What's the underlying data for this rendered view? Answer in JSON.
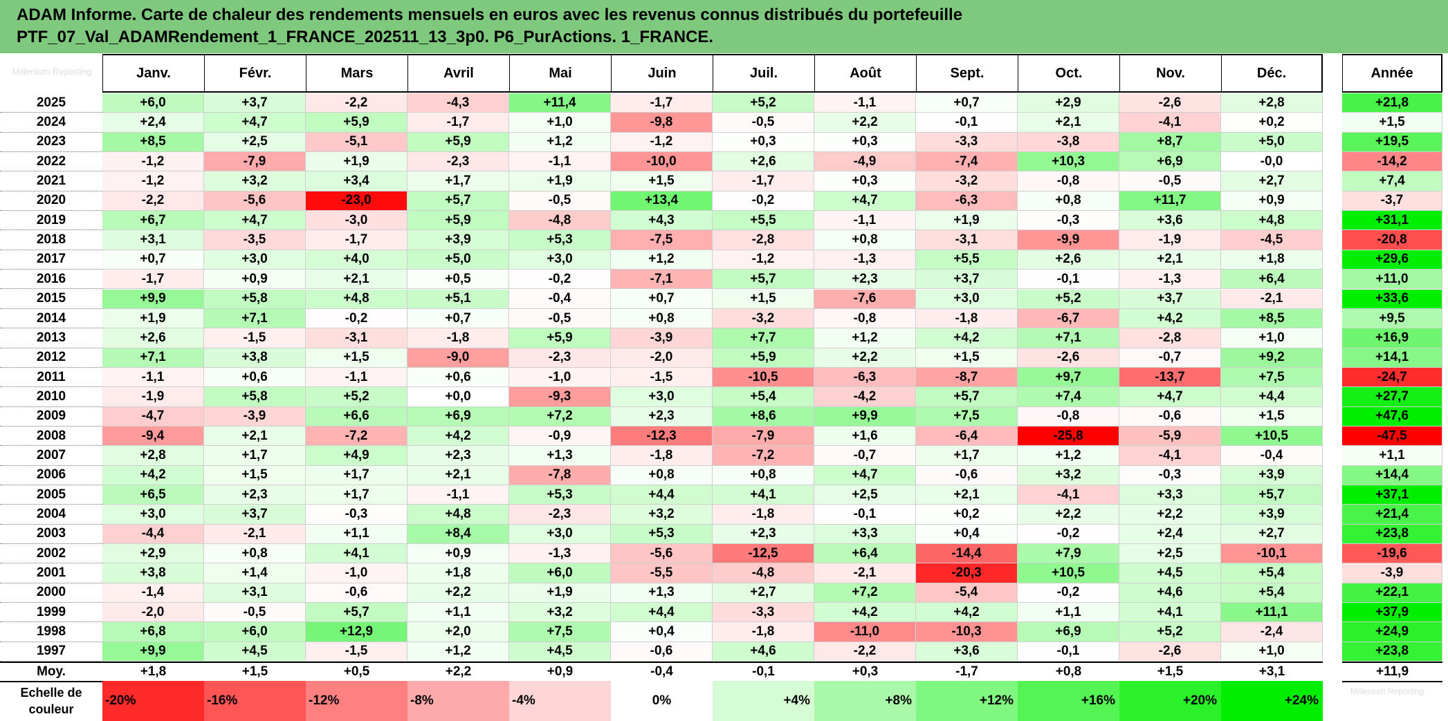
{
  "title": {
    "line1": "ADAM Informe. Carte de chaleur des rendements mensuels en euros avec les revenus connus distribués du portefeuille",
    "line2": "PTF_07_Val_ADAMRendement_1_FRANCE_202511_13_3p0. P6_PurActions. 1_FRANCE."
  },
  "corner_text": "Millenium Reporting",
  "chart_data": {
    "type": "heatmap",
    "title": "ADAM Informe. Carte de chaleur des rendements mensuels en euros avec les revenus connus distribués du portefeuille PTF_07_Val_ADAMRendement_1_FRANCE_202511_13_3p0. P6_PurActions. 1_FRANCE.",
    "columns": [
      "Janv.",
      "Févr.",
      "Mars",
      "Avril",
      "Mai",
      "Juin",
      "Juil.",
      "Août",
      "Sept.",
      "Oct.",
      "Nov.",
      "Déc."
    ],
    "year_header": "Année",
    "rows": [
      {
        "year": "2025",
        "values": [
          "+6,0",
          "+3,7",
          "-2,2",
          "-4,3",
          "+11,4",
          "-1,7",
          "+5,2",
          "-1,1",
          "+0,7",
          "+2,9",
          "-2,6",
          "+2,8"
        ],
        "annual": "+21,8"
      },
      {
        "year": "2024",
        "values": [
          "+2,4",
          "+4,7",
          "+5,9",
          "-1,7",
          "+1,0",
          "-9,8",
          "-0,5",
          "+2,2",
          "-0,1",
          "+2,1",
          "-4,1",
          "+0,2"
        ],
        "annual": "+1,5"
      },
      {
        "year": "2023",
        "values": [
          "+8,5",
          "+2,5",
          "-5,1",
          "+5,9",
          "+1,2",
          "-1,2",
          "+0,3",
          "+0,3",
          "-3,3",
          "-3,8",
          "+8,7",
          "+5,0"
        ],
        "annual": "+19,5"
      },
      {
        "year": "2022",
        "values": [
          "-1,2",
          "-7,9",
          "+1,9",
          "-2,3",
          "-1,1",
          "-10,0",
          "+2,6",
          "-4,9",
          "-7,4",
          "+10,3",
          "+6,9",
          "-0,0"
        ],
        "annual": "-14,2"
      },
      {
        "year": "2021",
        "values": [
          "-1,2",
          "+3,2",
          "+3,4",
          "+1,7",
          "+1,9",
          "+1,5",
          "-1,7",
          "+0,3",
          "-3,2",
          "-0,8",
          "-0,5",
          "+2,7"
        ],
        "annual": "+7,4"
      },
      {
        "year": "2020",
        "values": [
          "-2,2",
          "-5,6",
          "-23,0",
          "+5,7",
          "-0,5",
          "+13,4",
          "-0,2",
          "+4,7",
          "-6,3",
          "+0,8",
          "+11,7",
          "+0,9"
        ],
        "annual": "-3,7"
      },
      {
        "year": "2019",
        "values": [
          "+6,7",
          "+4,7",
          "-3,0",
          "+5,9",
          "-4,8",
          "+4,3",
          "+5,5",
          "-1,1",
          "+1,9",
          "-0,3",
          "+3,6",
          "+4,8"
        ],
        "annual": "+31,1"
      },
      {
        "year": "2018",
        "values": [
          "+3,1",
          "-3,5",
          "-1,7",
          "+3,9",
          "+5,3",
          "-7,5",
          "-2,8",
          "+0,8",
          "-3,1",
          "-9,9",
          "-1,9",
          "-4,5"
        ],
        "annual": "-20,8"
      },
      {
        "year": "2017",
        "values": [
          "+0,7",
          "+3,0",
          "+4,0",
          "+5,0",
          "+3,0",
          "+1,2",
          "-1,2",
          "-1,3",
          "+5,5",
          "+2,6",
          "+2,1",
          "+1,8"
        ],
        "annual": "+29,6"
      },
      {
        "year": "2016",
        "values": [
          "-1,7",
          "+0,9",
          "+2,1",
          "+0,5",
          "-0,2",
          "-7,1",
          "+5,7",
          "+2,3",
          "+3,7",
          "-0,1",
          "-1,3",
          "+6,4"
        ],
        "annual": "+11,0"
      },
      {
        "year": "2015",
        "values": [
          "+9,9",
          "+5,8",
          "+4,8",
          "+5,1",
          "-0,4",
          "+0,7",
          "+1,5",
          "-7,6",
          "+3,0",
          "+5,2",
          "+3,7",
          "-2,1"
        ],
        "annual": "+33,6"
      },
      {
        "year": "2014",
        "values": [
          "+1,9",
          "+7,1",
          "-0,2",
          "+0,7",
          "-0,5",
          "+0,8",
          "-3,2",
          "-0,8",
          "-1,8",
          "-6,7",
          "+4,2",
          "+8,5"
        ],
        "annual": "+9,5"
      },
      {
        "year": "2013",
        "values": [
          "+2,6",
          "-1,5",
          "-3,1",
          "-1,8",
          "+5,9",
          "-3,9",
          "+7,7",
          "+1,2",
          "+4,2",
          "+7,1",
          "-2,8",
          "+1,0"
        ],
        "annual": "+16,9"
      },
      {
        "year": "2012",
        "values": [
          "+7,1",
          "+3,8",
          "+1,5",
          "-9,0",
          "-2,3",
          "-2,0",
          "+5,9",
          "+2,2",
          "+1,5",
          "-2,6",
          "-0,7",
          "+9,2"
        ],
        "annual": "+14,1"
      },
      {
        "year": "2011",
        "values": [
          "-1,1",
          "+0,6",
          "-1,1",
          "+0,6",
          "-1,0",
          "-1,5",
          "-10,5",
          "-6,3",
          "-8,7",
          "+9,7",
          "-13,7",
          "+7,5"
        ],
        "annual": "-24,7"
      },
      {
        "year": "2010",
        "values": [
          "-1,9",
          "+5,8",
          "+5,2",
          "+0,0",
          "-9,3",
          "+3,0",
          "+5,4",
          "-4,2",
          "+5,7",
          "+7,4",
          "+4,7",
          "+4,4"
        ],
        "annual": "+27,7"
      },
      {
        "year": "2009",
        "values": [
          "-4,7",
          "-3,9",
          "+6,6",
          "+6,9",
          "+7,2",
          "+2,3",
          "+8,6",
          "+9,9",
          "+7,5",
          "-0,8",
          "-0,6",
          "+1,5"
        ],
        "annual": "+47,6"
      },
      {
        "year": "2008",
        "values": [
          "-9,4",
          "+2,1",
          "-7,2",
          "+4,2",
          "-0,9",
          "-12,3",
          "-7,9",
          "+1,6",
          "-6,4",
          "-25,8",
          "-5,9",
          "+10,5"
        ],
        "annual": "-47,5"
      },
      {
        "year": "2007",
        "values": [
          "+2,8",
          "+1,7",
          "+4,9",
          "+2,3",
          "+1,3",
          "-1,8",
          "-7,2",
          "-0,7",
          "+1,7",
          "+1,2",
          "-4,1",
          "-0,4"
        ],
        "annual": "+1,1"
      },
      {
        "year": "2006",
        "values": [
          "+4,2",
          "+1,5",
          "+1,7",
          "+2,1",
          "-7,8",
          "+0,8",
          "+0,8",
          "+4,7",
          "-0,6",
          "+3,2",
          "-0,3",
          "+3,9"
        ],
        "annual": "+14,4"
      },
      {
        "year": "2005",
        "values": [
          "+6,5",
          "+2,3",
          "+1,7",
          "-1,1",
          "+5,3",
          "+4,4",
          "+4,1",
          "+2,5",
          "+2,1",
          "-4,1",
          "+3,3",
          "+5,7"
        ],
        "annual": "+37,1"
      },
      {
        "year": "2004",
        "values": [
          "+3,0",
          "+3,7",
          "-0,3",
          "+4,8",
          "-2,3",
          "+3,2",
          "-1,8",
          "-0,1",
          "+0,2",
          "+2,2",
          "+2,2",
          "+3,9"
        ],
        "annual": "+21,4"
      },
      {
        "year": "2003",
        "values": [
          "-4,4",
          "-2,1",
          "+1,1",
          "+8,4",
          "+3,0",
          "+5,3",
          "+2,3",
          "+3,3",
          "+0,4",
          "-0,2",
          "+2,4",
          "+2,7"
        ],
        "annual": "+23,8"
      },
      {
        "year": "2002",
        "values": [
          "+2,9",
          "+0,8",
          "+4,1",
          "+0,9",
          "-1,3",
          "-5,6",
          "-12,5",
          "+6,4",
          "-14,4",
          "+7,9",
          "+2,5",
          "-10,1"
        ],
        "annual": "-19,6"
      },
      {
        "year": "2001",
        "values": [
          "+3,8",
          "+1,4",
          "-1,0",
          "+1,8",
          "+6,0",
          "-5,5",
          "-4,8",
          "-2,1",
          "-20,3",
          "+10,5",
          "+4,5",
          "+5,4"
        ],
        "annual": "-3,9"
      },
      {
        "year": "2000",
        "values": [
          "-1,4",
          "+3,1",
          "-0,6",
          "+2,2",
          "+1,9",
          "+1,3",
          "+2,7",
          "+7,2",
          "-5,4",
          "-0,2",
          "+4,6",
          "+5,4"
        ],
        "annual": "+22,1"
      },
      {
        "year": "1999",
        "values": [
          "-2,0",
          "-0,5",
          "+5,7",
          "+1,1",
          "+3,2",
          "+4,4",
          "-3,3",
          "+4,2",
          "+4,2",
          "+1,1",
          "+4,1",
          "+11,1"
        ],
        "annual": "+37,9"
      },
      {
        "year": "1998",
        "values": [
          "+6,8",
          "+6,0",
          "+12,9",
          "+2,0",
          "+7,5",
          "+0,4",
          "-1,8",
          "-11,0",
          "-10,3",
          "+6,9",
          "+5,2",
          "-2,4"
        ],
        "annual": "+24,9"
      },
      {
        "year": "1997",
        "values": [
          "+9,9",
          "+4,5",
          "-1,5",
          "+1,2",
          "+4,5",
          "-0,6",
          "+4,6",
          "-2,2",
          "+3,6",
          "-0,1",
          "-2,6",
          "+1,0"
        ],
        "annual": "+23,8"
      }
    ],
    "average": {
      "label": "Moy.",
      "values": [
        "+1,8",
        "+1,5",
        "+0,5",
        "+2,2",
        "+0,9",
        "-0,4",
        "-0,1",
        "+0,3",
        "-1,7",
        "+0,8",
        "+1,5",
        "+3,1"
      ],
      "annual": "+11,9"
    },
    "scale": {
      "label_line1": "Echelle de",
      "label_line2": "couleur",
      "stops": [
        "-20%",
        "-16%",
        "-12%",
        "-8%",
        "-4%",
        "0%",
        "+4%",
        "+8%",
        "+12%",
        "+16%",
        "+20%",
        "+24%"
      ],
      "stop_values": [
        -20,
        -16,
        -12,
        -8,
        -4,
        0,
        4,
        8,
        12,
        16,
        20,
        24
      ]
    },
    "scale_note": "Millenium Reporting"
  }
}
